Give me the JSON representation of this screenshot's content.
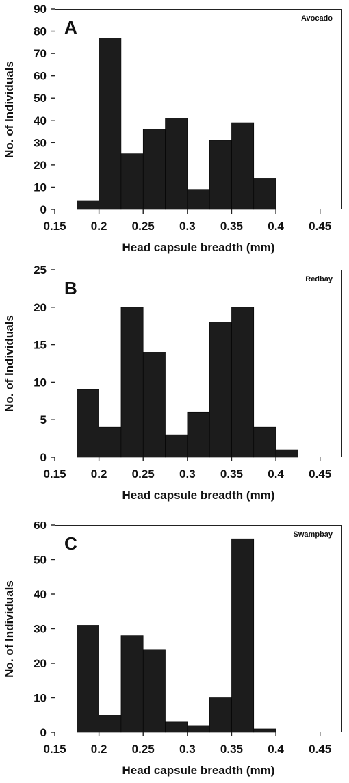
{
  "chart_data": [
    {
      "type": "bar",
      "panel_letter": "A",
      "panel_name": "Avocado",
      "xlabel": "Head capsule breadth (mm)",
      "ylabel": "No. of Individuals",
      "bin_width": 0.025,
      "bin_starts": [
        0.175,
        0.2,
        0.225,
        0.25,
        0.275,
        0.3,
        0.325,
        0.35,
        0.375
      ],
      "values": [
        4,
        77,
        25,
        36,
        41,
        9,
        31,
        39,
        14
      ],
      "x_ticks": [
        0.15,
        0.2,
        0.25,
        0.3,
        0.35,
        0.4,
        0.45
      ],
      "x_tick_labels": [
        "0.15",
        "0.2",
        "0.25",
        "0.3",
        "0.35",
        "0.4",
        "0.45"
      ],
      "y_ticks": [
        0,
        10,
        20,
        30,
        40,
        50,
        60,
        70,
        80,
        90
      ],
      "y_tick_labels": [
        "0",
        "10",
        "20",
        "30",
        "40",
        "50",
        "60",
        "70",
        "80",
        "90"
      ],
      "xlim": [
        0.15,
        0.475
      ],
      "ylim": [
        0,
        90
      ]
    },
    {
      "type": "bar",
      "panel_letter": "B",
      "panel_name": "Redbay",
      "xlabel": "Head capsule breadth (mm)",
      "ylabel": "No. of Individuals",
      "bin_width": 0.025,
      "bin_starts": [
        0.175,
        0.2,
        0.225,
        0.25,
        0.275,
        0.3,
        0.325,
        0.35,
        0.375,
        0.4
      ],
      "values": [
        9,
        4,
        20,
        14,
        3,
        6,
        18,
        20,
        4,
        1
      ],
      "x_ticks": [
        0.15,
        0.2,
        0.25,
        0.3,
        0.35,
        0.4,
        0.45
      ],
      "x_tick_labels": [
        "0.15",
        "0.2",
        "0.25",
        "0.3",
        "0.35",
        "0.4",
        "0.45"
      ],
      "y_ticks": [
        0,
        5,
        10,
        15,
        20,
        25
      ],
      "y_tick_labels": [
        "0",
        "5",
        "10",
        "15",
        "20",
        "25"
      ],
      "xlim": [
        0.15,
        0.475
      ],
      "ylim": [
        0,
        25
      ]
    },
    {
      "type": "bar",
      "panel_letter": "C",
      "panel_name": "Swampbay",
      "xlabel": "Head capsule breadth (mm)",
      "ylabel": "No. of Individuals",
      "bin_width": 0.025,
      "bin_starts": [
        0.175,
        0.2,
        0.225,
        0.25,
        0.275,
        0.3,
        0.325,
        0.35,
        0.375
      ],
      "values": [
        31,
        5,
        28,
        24,
        3,
        2,
        10,
        56,
        1
      ],
      "x_ticks": [
        0.15,
        0.2,
        0.25,
        0.3,
        0.35,
        0.4,
        0.45
      ],
      "x_tick_labels": [
        "0.15",
        "0.2",
        "0.25",
        "0.3",
        "0.35",
        "0.4",
        "0.45"
      ],
      "y_ticks": [
        0,
        10,
        20,
        30,
        40,
        50,
        60
      ],
      "y_tick_labels": [
        "0",
        "10",
        "20",
        "30",
        "40",
        "50",
        "60"
      ],
      "xlim": [
        0.15,
        0.475
      ],
      "ylim": [
        0,
        60
      ]
    }
  ],
  "colors": {
    "bar_fill": "#1c1c1c",
    "axis": "#222222",
    "background": "#ffffff"
  }
}
